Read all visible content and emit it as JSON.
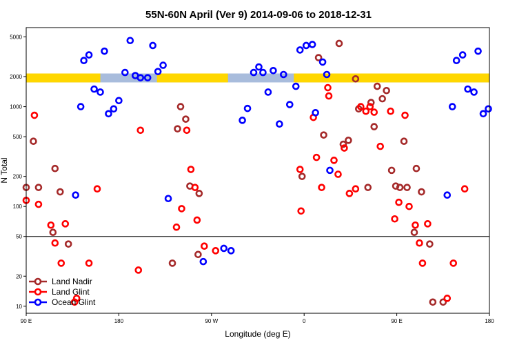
{
  "chart_data": {
    "type": "scatter",
    "title": "55N-60N April (Ver 9)   2014-09-06 to 2018-12-31",
    "xlabel": "Longitude (deg E)",
    "ylabel": "N Total",
    "y_scale": "log",
    "xlim": [
      90,
      540
    ],
    "ylim": [
      8.5,
      6200
    ],
    "x_ticks": [
      {
        "value": 90,
        "label": "90 E"
      },
      {
        "value": 180,
        "label": "180"
      },
      {
        "value": 270,
        "label": "90 W"
      },
      {
        "value": 360,
        "label": "0"
      },
      {
        "value": 450,
        "label": "90 E"
      },
      {
        "value": 540,
        "label": "180"
      }
    ],
    "y_ticks": [
      10,
      20,
      50,
      100,
      200,
      500,
      1000,
      2000,
      5000
    ],
    "reference_line": 50,
    "legend": {
      "position": "bottom-left",
      "entries": [
        "Land Nadir",
        "Land Glint",
        "Ocean Glint"
      ]
    },
    "colors": {
      "land_nadir": "#a52a2a",
      "land_glint": "#ff0000",
      "ocean_glint": "#0000ff",
      "map_land": "#ffd700",
      "map_ocean": "#a8bcdc"
    },
    "map_band": {
      "y_range": [
        1750,
        2150
      ],
      "land_segments": [
        [
          90,
          162
        ],
        [
          217,
          286
        ],
        [
          350,
          550
        ]
      ]
    },
    "series": [
      {
        "name": "Land Nadir",
        "points": [
          [
            90,
            155
          ],
          [
            97,
            450
          ],
          [
            102,
            155
          ],
          [
            116,
            55
          ],
          [
            118,
            240
          ],
          [
            123,
            140
          ],
          [
            131,
            42
          ],
          [
            232,
            27
          ],
          [
            237,
            600
          ],
          [
            240,
            1000
          ],
          [
            245,
            750
          ],
          [
            249,
            160
          ],
          [
            257,
            33
          ],
          [
            258,
            135
          ],
          [
            358,
            200
          ],
          [
            374,
            3100
          ],
          [
            379,
            520
          ],
          [
            394,
            4300
          ],
          [
            398,
            420
          ],
          [
            403,
            460
          ],
          [
            410,
            1900
          ],
          [
            413,
            950
          ],
          [
            422,
            155
          ],
          [
            425,
            1100
          ],
          [
            428,
            630
          ],
          [
            431,
            1600
          ],
          [
            436,
            1200
          ],
          [
            440,
            1450
          ],
          [
            445,
            230
          ],
          [
            449,
            160
          ],
          [
            453,
            155
          ],
          [
            457,
            450
          ],
          [
            460,
            155
          ],
          [
            467,
            55
          ],
          [
            469,
            240
          ],
          [
            474,
            140
          ],
          [
            482,
            42
          ],
          [
            485,
            11
          ],
          [
            495,
            11
          ]
        ]
      },
      {
        "name": "Land Glint",
        "points": [
          [
            90,
            115
          ],
          [
            98,
            820
          ],
          [
            102,
            105
          ],
          [
            114,
            65
          ],
          [
            118,
            43
          ],
          [
            124,
            27
          ],
          [
            128,
            67
          ],
          [
            137,
            11
          ],
          [
            139,
            12
          ],
          [
            151,
            27
          ],
          [
            159,
            150
          ],
          [
            199,
            23
          ],
          [
            201,
            580
          ],
          [
            236,
            62
          ],
          [
            241,
            95
          ],
          [
            246,
            580
          ],
          [
            250,
            235
          ],
          [
            254,
            155
          ],
          [
            256,
            73
          ],
          [
            263,
            40
          ],
          [
            274,
            36
          ],
          [
            356,
            235
          ],
          [
            357,
            90
          ],
          [
            369,
            780
          ],
          [
            372,
            310
          ],
          [
            377,
            155
          ],
          [
            383,
            1550
          ],
          [
            384,
            1280
          ],
          [
            389,
            290
          ],
          [
            393,
            210
          ],
          [
            399,
            385
          ],
          [
            404,
            135
          ],
          [
            410,
            150
          ],
          [
            415,
            1000
          ],
          [
            420,
            900
          ],
          [
            424,
            1000
          ],
          [
            428,
            880
          ],
          [
            434,
            400
          ],
          [
            444,
            900
          ],
          [
            448,
            75
          ],
          [
            452,
            110
          ],
          [
            458,
            820
          ],
          [
            462,
            100
          ],
          [
            468,
            65
          ],
          [
            472,
            43
          ],
          [
            475,
            27
          ],
          [
            480,
            67
          ],
          [
            499,
            12
          ],
          [
            505,
            27
          ],
          [
            516,
            150
          ]
        ]
      },
      {
        "name": "Ocean Glint",
        "points": [
          [
            138,
            130
          ],
          [
            143,
            1000
          ],
          [
            146,
            2900
          ],
          [
            151,
            3300
          ],
          [
            156,
            1500
          ],
          [
            162,
            1400
          ],
          [
            166,
            3600
          ],
          [
            170,
            850
          ],
          [
            175,
            950
          ],
          [
            180,
            1150
          ],
          [
            186,
            2200
          ],
          [
            191,
            4600
          ],
          [
            196,
            2050
          ],
          [
            201,
            1950
          ],
          [
            208,
            1950
          ],
          [
            213,
            4100
          ],
          [
            218,
            2250
          ],
          [
            223,
            2600
          ],
          [
            228,
            120
          ],
          [
            262,
            28
          ],
          [
            282,
            38
          ],
          [
            289,
            36
          ],
          [
            300,
            730
          ],
          [
            305,
            960
          ],
          [
            311,
            2200
          ],
          [
            316,
            2500
          ],
          [
            320,
            2200
          ],
          [
            325,
            1400
          ],
          [
            330,
            2300
          ],
          [
            336,
            670
          ],
          [
            340,
            2100
          ],
          [
            346,
            1050
          ],
          [
            352,
            1600
          ],
          [
            356,
            3700
          ],
          [
            362,
            4100
          ],
          [
            368,
            4200
          ],
          [
            371,
            870
          ],
          [
            378,
            2800
          ],
          [
            382,
            2100
          ],
          [
            385,
            230
          ],
          [
            499,
            130
          ],
          [
            504,
            1000
          ],
          [
            508,
            2900
          ],
          [
            514,
            3300
          ],
          [
            519,
            1500
          ],
          [
            525,
            1400
          ],
          [
            529,
            3600
          ],
          [
            534,
            850
          ],
          [
            539,
            950
          ]
        ]
      }
    ]
  }
}
